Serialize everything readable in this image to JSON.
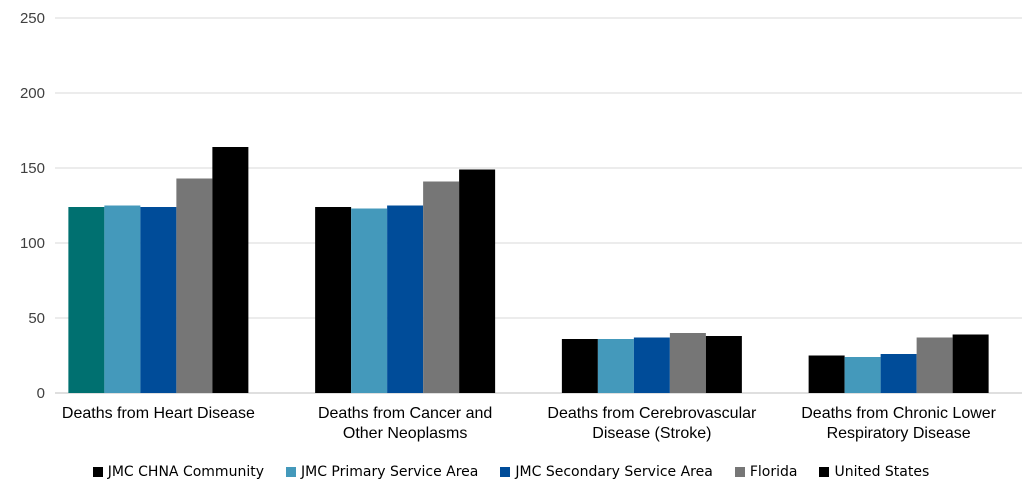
{
  "chart_data": {
    "type": "bar",
    "categories": [
      [
        "Deaths from Heart Disease"
      ],
      [
        "Deaths from Cancer and",
        "Other Neoplasms"
      ],
      [
        "Deaths from Cerebrovascular",
        "Disease (Stroke)"
      ],
      [
        "Deaths from Chronic Lower",
        "Respiratory Disease"
      ]
    ],
    "series": [
      {
        "name": "JMC CHNA Community",
        "values": [
          124,
          124,
          36,
          25
        ],
        "color": "#000000",
        "first_bar_color": "#007070"
      },
      {
        "name": "JMC Primary Service Area",
        "values": [
          125,
          123,
          36,
          24
        ],
        "color": "#4499bb"
      },
      {
        "name": "JMC Secondary Service Area",
        "values": [
          124,
          125,
          37,
          26
        ],
        "color": "#004c99"
      },
      {
        "name": "Florida",
        "values": [
          143,
          141,
          40,
          37
        ],
        "color": "#767676"
      },
      {
        "name": "United States",
        "values": [
          164,
          149,
          38,
          39
        ],
        "color": "#000000"
      }
    ],
    "yticks": [
      0,
      50,
      100,
      150,
      200,
      250
    ],
    "ylim": [
      0,
      250
    ],
    "grid": true,
    "legend_position": "bottom",
    "title": "",
    "xlabel": "",
    "ylabel": ""
  }
}
